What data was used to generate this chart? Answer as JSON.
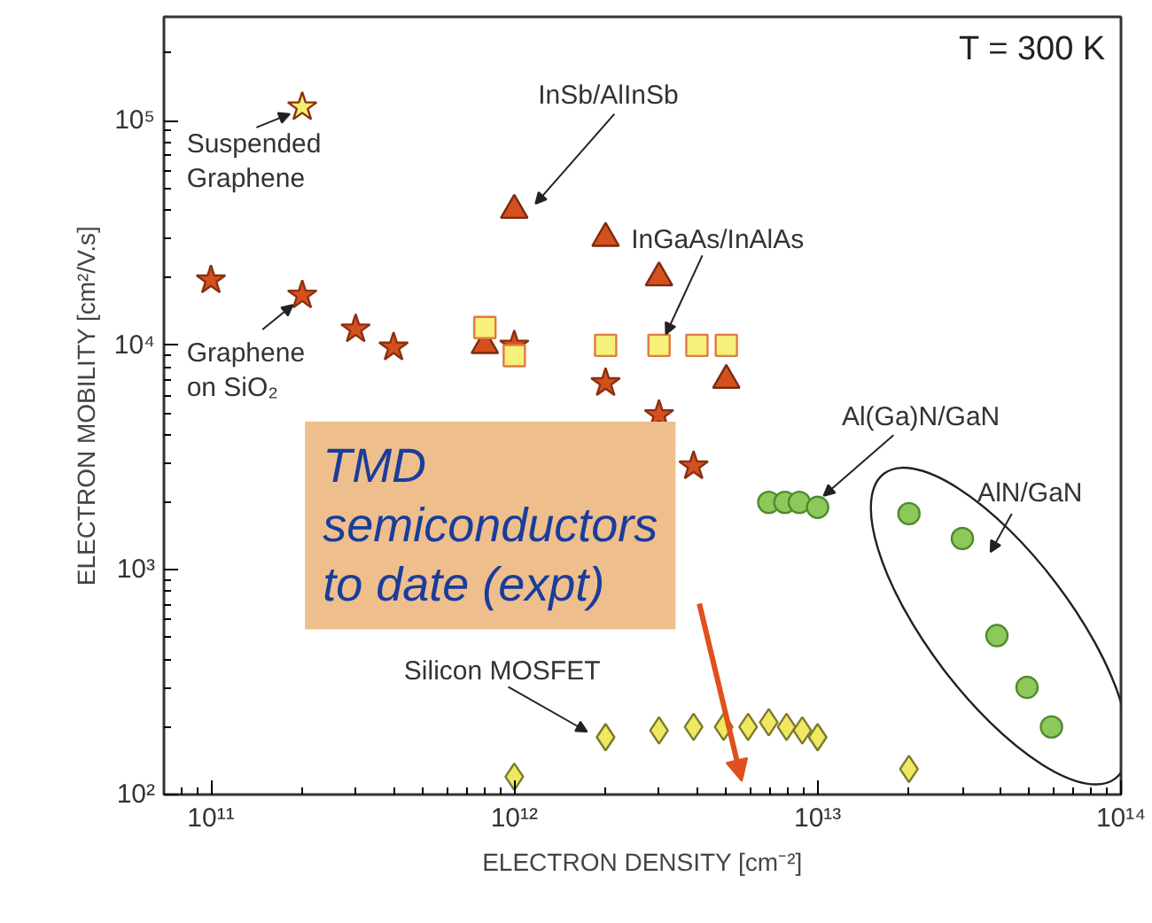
{
  "chart_data": {
    "type": "scatter",
    "xlabel": "ELECTRON DENSITY [cm⁻²]",
    "ylabel": "ELECTRON MOBILITY [cm²/V.s]",
    "log": "xy",
    "grid": false,
    "legend": false,
    "xlim": [
      70000000000.0,
      100000000000000.0
    ],
    "ylim": [
      100,
      290000
    ],
    "xticks": [
      {
        "value": 100000000000.0,
        "label": "10¹¹"
      },
      {
        "value": 1000000000000.0,
        "label": "10¹²"
      },
      {
        "value": 10000000000000.0,
        "label": "10¹³"
      },
      {
        "value": 100000000000000.0,
        "label": "10¹⁴"
      }
    ],
    "yticks": [
      {
        "value": 100,
        "label": "10²"
      },
      {
        "value": 1000,
        "label": "10³"
      },
      {
        "value": 10000,
        "label": "10⁴"
      },
      {
        "value": 100000,
        "label": "10⁵"
      }
    ],
    "series": [
      {
        "name": "Suspended\nGraphene",
        "marker": "star",
        "color": "#f4ef6e",
        "x": [
          200000000000.0
        ],
        "values": [
          115000
        ]
      },
      {
        "name": "Graphene\non SiO₂",
        "marker": "star",
        "color": "#d4501c",
        "x": [
          100000000000.0,
          200000000000.0,
          300000000000.0,
          400000000000.0,
          1000000000000.0,
          2000000000000.0,
          3000000000000.0,
          3900000000000.0
        ],
        "values": [
          19500,
          16700,
          11800,
          9800,
          10000,
          6800,
          4900,
          2900
        ]
      },
      {
        "name": "InSb/AlInSb",
        "marker": "triangle",
        "color": "#d4501c",
        "x": [
          1000000000000.0,
          2000000000000.0,
          3000000000000.0,
          800000000000.0,
          5000000000000.0
        ],
        "values": [
          40000,
          30000,
          20000,
          10000,
          7000
        ]
      },
      {
        "name": "InGaAs/InAlAs",
        "marker": "square",
        "color": "#f7f07a",
        "x": [
          800000000000.0,
          1000000000000.0,
          2000000000000.0,
          3000000000000.0,
          4000000000000.0,
          5000000000000.0
        ],
        "values": [
          12000,
          9000,
          10000,
          10000,
          10000,
          10000
        ]
      },
      {
        "name": "Al(Ga)N/GaN",
        "marker": "circle",
        "color": "#8dc85a",
        "x": [
          6900000000000.0,
          7800000000000.0,
          8700000000000.0,
          10000000000000.0
        ],
        "values": [
          2000,
          2000,
          2000,
          1900
        ]
      },
      {
        "name": "AlN/GaN",
        "marker": "circle",
        "color": "#8dc85a",
        "x": [
          20000000000000.0,
          30000000000000.0,
          39000000000000.0,
          49000000000000.0,
          59000000000000.0
        ],
        "values": [
          1780,
          1380,
          510,
          300,
          200
        ]
      },
      {
        "name": "Silicon MOSFET",
        "marker": "diamond",
        "color": "#f0e860",
        "x": [
          1000000000000.0,
          2000000000000.0,
          3000000000000.0,
          3900000000000.0,
          4900000000000.0,
          5900000000000.0,
          6900000000000.0,
          7900000000000.0,
          8900000000000.0,
          10000000000000.0,
          20000000000000.0
        ],
        "values": [
          120,
          180,
          193,
          200,
          200,
          200,
          210,
          200,
          193,
          180,
          130
        ]
      }
    ],
    "annotations": [
      "T = 300 K",
      "TMD\nsemiconductors\nto date (expt)"
    ]
  }
}
